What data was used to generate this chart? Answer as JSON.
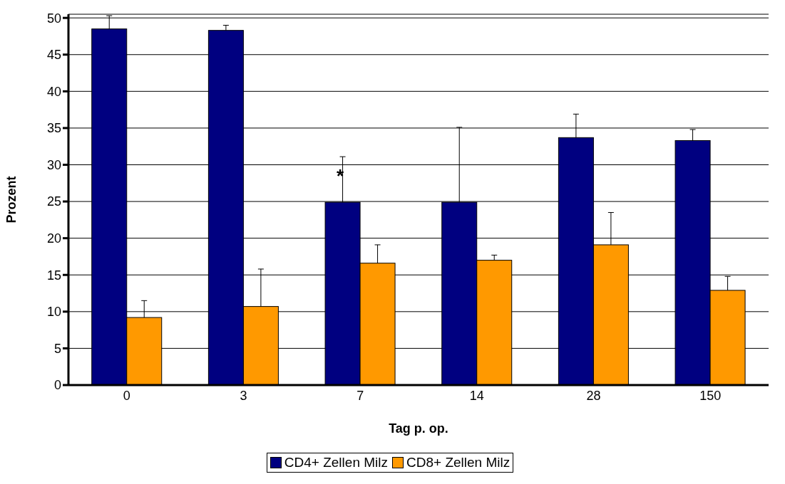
{
  "chart_data": {
    "type": "bar",
    "xlabel": "Tag p. op.",
    "ylabel": "Prozent",
    "categories": [
      "0",
      "3",
      "7",
      "14",
      "28",
      "150"
    ],
    "series": [
      {
        "name": "CD4+ Zellen Milz",
        "color": "#000080",
        "values": [
          48.5,
          48.3,
          24.9,
          24.9,
          33.7,
          33.3
        ],
        "errors": [
          [
            48.5,
            50.3
          ],
          [
            48.3,
            49.0
          ],
          [
            24.9,
            31.1
          ],
          [
            24.9,
            35.1
          ],
          [
            33.7,
            36.9
          ],
          [
            33.3,
            34.8
          ]
        ]
      },
      {
        "name": "CD8+ Zellen Milz",
        "color": "#ff9900",
        "values": [
          9.2,
          10.7,
          16.6,
          17.0,
          19.1,
          12.9
        ],
        "errors": [
          [
            9.2,
            11.5
          ],
          [
            10.7,
            15.8
          ],
          [
            16.6,
            19.1
          ],
          [
            17.0,
            17.7
          ],
          [
            19.1,
            23.5
          ],
          [
            12.9,
            14.8
          ]
        ]
      }
    ],
    "ylim": [
      0,
      50.5
    ],
    "yticks": [
      0,
      5,
      10,
      15,
      20,
      25,
      30,
      35,
      40,
      45,
      50
    ],
    "grid": "y",
    "legend": "bottom",
    "annotations": [
      "*"
    ]
  }
}
